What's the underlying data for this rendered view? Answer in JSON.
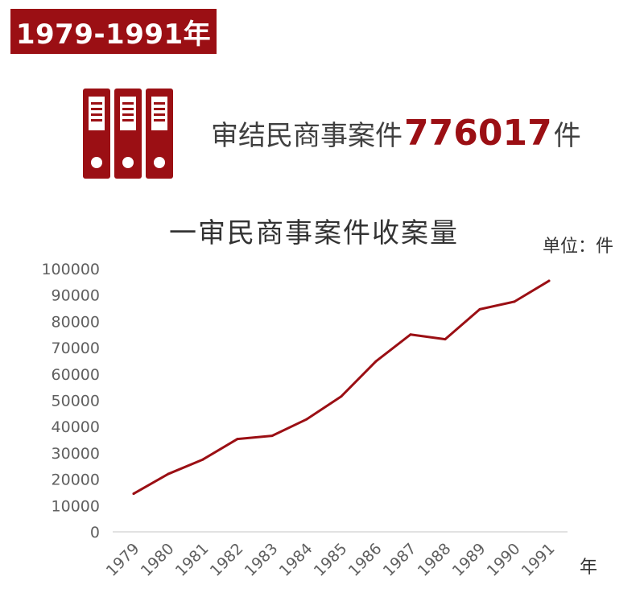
{
  "banner": {
    "label": "1979-1991年"
  },
  "headline": {
    "prefix": "审结民商事案件",
    "number": "776017",
    "suffix": "件"
  },
  "colors": {
    "accent": "#9b0f14",
    "line": "#9b0f14",
    "text": "#404040",
    "axis": "#d9d9d9"
  },
  "icon": "binders-icon",
  "chart_data": {
    "type": "line",
    "title": "一审民商事案件收案量",
    "unit_label": "单位：件",
    "xlabel": "年",
    "ylabel": "",
    "ylim": [
      0,
      100000
    ],
    "yticks": [
      0,
      10000,
      20000,
      30000,
      40000,
      50000,
      60000,
      70000,
      80000,
      90000,
      100000
    ],
    "categories": [
      "1979",
      "1980",
      "1981",
      "1982",
      "1983",
      "1984",
      "1985",
      "1986",
      "1987",
      "1988",
      "1989",
      "1990",
      "1991"
    ],
    "series": [
      {
        "values": [
          14500,
          22000,
          27500,
          35300,
          36500,
          42800,
          51500,
          64800,
          75000,
          73200,
          84600,
          87500,
          95400
        ]
      }
    ],
    "grid": false,
    "legend": "none"
  }
}
